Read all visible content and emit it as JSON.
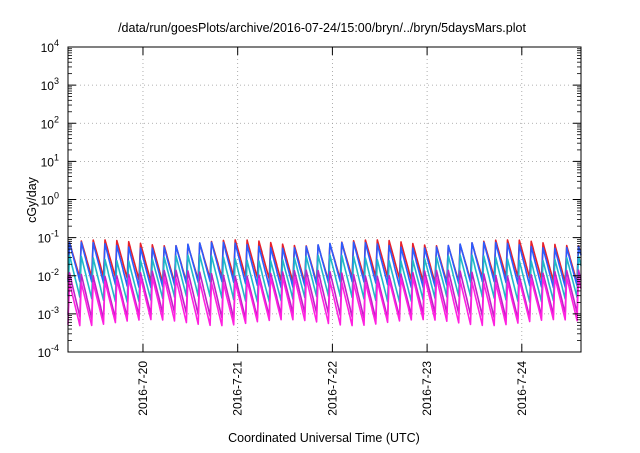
{
  "chart_data": {
    "type": "line",
    "title": "/data/run/goesPlots/archive/2016-07-24/15:00/bryn/../bryn/5daysMars.plot",
    "xlabel": "Coordinated Universal Time (UTC)",
    "ylabel": "cGy/day",
    "x_range": [
      "2016-07-19T05:00",
      "2016-07-24T15:00"
    ],
    "x_ticks": [
      "2016-7-20",
      "2016-7-21",
      "2016-7-22",
      "2016-7-23",
      "2016-7-24"
    ],
    "y_scale": "log",
    "ylim": [
      0.0001,
      10000
    ],
    "y_ticks": [
      {
        "base": "10",
        "exp": "-4"
      },
      {
        "base": "10",
        "exp": "-3"
      },
      {
        "base": "10",
        "exp": "-2"
      },
      {
        "base": "10",
        "exp": "-1"
      },
      {
        "base": "10",
        "exp": "0"
      },
      {
        "base": "10",
        "exp": "1"
      },
      {
        "base": "10",
        "exp": "2"
      },
      {
        "base": "10",
        "exp": "3"
      },
      {
        "base": "10",
        "exp": "4"
      }
    ],
    "grid": true,
    "cycles_per_day": 8,
    "series": [
      {
        "color": "#e8202a",
        "peak": 0.075,
        "trough": 0.008
      },
      {
        "color": "#2a5cff",
        "peak": 0.065,
        "trough": 0.006
      },
      {
        "color": "#20b8c8",
        "peak": 0.03,
        "trough": 0.0025
      },
      {
        "color": "#c020c8",
        "peak": 0.012,
        "trough": 0.0009
      },
      {
        "color": "#ff20e0",
        "peak": 0.008,
        "trough": 0.0006
      }
    ]
  }
}
